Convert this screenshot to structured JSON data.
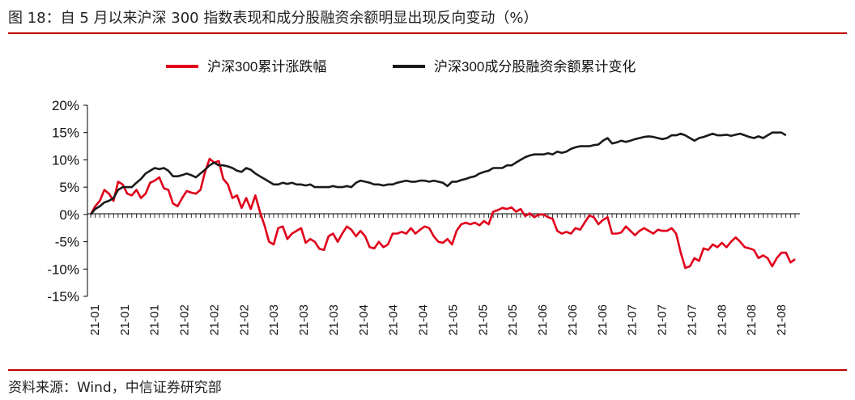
{
  "figure": {
    "title": "图 18：自 5 月以来沪深 300 指数表现和成分股融资余额明显出现反向变动（%）",
    "source": "资料来源：Wind，中信证券研究部"
  },
  "colors": {
    "series1": "#e0001b",
    "series2": "#1a1a1a",
    "rule": "#c00000"
  },
  "chart_data": {
    "type": "line",
    "title": "",
    "xlabel": "",
    "ylabel": "",
    "ylim": [
      -15,
      20
    ],
    "yticks": [
      -15,
      -10,
      -5,
      0,
      5,
      10,
      15,
      20
    ],
    "ytick_labels": [
      "-15%",
      "-10%",
      "-5%",
      "0%",
      "5%",
      "10%",
      "15%",
      "20%"
    ],
    "legend_position": "top",
    "x_tick_labels": [
      "21-01",
      "21-01",
      "21-01",
      "21-02",
      "21-02",
      "21-02",
      "21-03",
      "21-03",
      "21-03",
      "21-04",
      "21-04",
      "21-04",
      "21-05",
      "21-05",
      "21-05",
      "21-06",
      "21-06",
      "21-06",
      "21-07",
      "21-07",
      "21-07",
      "21-08",
      "21-08",
      "21-08"
    ],
    "series": [
      {
        "name": "沪深300累计涨跌幅",
        "color": "#e0001b",
        "values": [
          0.0,
          1.5,
          2.5,
          4.5,
          3.8,
          2.5,
          6.0,
          5.5,
          3.8,
          3.5,
          4.5,
          3.0,
          3.8,
          5.8,
          6.2,
          6.8,
          4.8,
          4.5,
          2.0,
          1.5,
          3.0,
          4.3,
          4.0,
          3.8,
          4.5,
          7.8,
          10.2,
          9.5,
          9.8,
          6.5,
          5.5,
          3.0,
          3.5,
          1.2,
          3.0,
          1.0,
          3.5,
          0.5,
          -2.0,
          -5.0,
          -5.5,
          -2.5,
          -2.2,
          -4.5,
          -3.5,
          -3.0,
          -2.5,
          -5.2,
          -4.5,
          -5.0,
          -6.3,
          -6.5,
          -4.0,
          -3.5,
          -5.0,
          -3.5,
          -2.2,
          -2.8,
          -4.0,
          -3.0,
          -4.0,
          -6.0,
          -6.2,
          -5.0,
          -6.0,
          -5.5,
          -3.5,
          -3.5,
          -3.2,
          -3.5,
          -2.5,
          -3.5,
          -2.8,
          -2.2,
          -2.5,
          -4.0,
          -5.0,
          -5.2,
          -4.5,
          -5.5,
          -3.0,
          -1.8,
          -1.5,
          -1.8,
          -1.5,
          -2.0,
          -1.2,
          -1.8,
          0.5,
          0.8,
          1.2,
          1.0,
          1.3,
          0.5,
          1.0,
          -0.3,
          0.2,
          -0.5,
          0.0,
          0.0,
          -0.5,
          -0.8,
          -3.0,
          -3.5,
          -3.2,
          -3.5,
          -2.5,
          -2.8,
          -1.5,
          -0.2,
          -0.5,
          -1.8,
          -1.0,
          -0.5,
          -3.5,
          -3.5,
          -3.3,
          -2.2,
          -3.0,
          -3.8,
          -3.0,
          -2.5,
          -3.0,
          -3.5,
          -2.8,
          -3.0,
          -3.0,
          -2.5,
          -3.5,
          -7.0,
          -9.8,
          -9.5,
          -8.0,
          -8.5,
          -6.2,
          -6.5,
          -5.5,
          -6.0,
          -5.2,
          -6.0,
          -5.0,
          -4.2,
          -5.0,
          -6.0,
          -6.2,
          -6.5,
          -8.0,
          -7.5,
          -8.0,
          -9.5,
          -8.0,
          -7.0,
          -7.0,
          -8.8,
          -8.2
        ]
      },
      {
        "name": "沪深300成分股融资余额累计变化",
        "color": "#1a1a1a",
        "values": [
          0.0,
          1.0,
          1.5,
          2.2,
          2.5,
          3.0,
          4.5,
          5.0,
          5.0,
          5.0,
          5.8,
          6.5,
          7.5,
          8.0,
          8.5,
          8.3,
          8.5,
          8.0,
          7.0,
          7.0,
          7.2,
          7.5,
          7.2,
          6.8,
          7.5,
          8.2,
          9.0,
          9.5,
          9.0,
          9.0,
          8.8,
          8.5,
          8.0,
          7.8,
          8.5,
          8.2,
          7.5,
          7.0,
          6.5,
          6.0,
          5.5,
          5.5,
          5.8,
          5.6,
          5.8,
          5.5,
          5.5,
          5.3,
          5.5,
          5.0,
          5.0,
          5.0,
          5.0,
          5.2,
          5.0,
          5.0,
          5.2,
          5.0,
          5.8,
          6.2,
          6.0,
          5.8,
          5.5,
          5.5,
          5.3,
          5.5,
          5.5,
          5.8,
          6.0,
          6.2,
          6.0,
          6.0,
          6.2,
          6.2,
          6.0,
          6.2,
          6.0,
          5.8,
          5.2,
          6.0,
          6.0,
          6.3,
          6.5,
          6.8,
          7.0,
          7.5,
          7.8,
          8.0,
          8.5,
          8.5,
          8.5,
          9.0,
          9.0,
          9.5,
          10.0,
          10.5,
          10.8,
          11.0,
          11.0,
          11.0,
          11.2,
          11.0,
          11.5,
          11.3,
          11.5,
          12.0,
          12.3,
          12.5,
          12.5,
          12.5,
          12.7,
          12.8,
          13.5,
          14.0,
          13.0,
          13.2,
          13.5,
          13.3,
          13.5,
          13.8,
          14.0,
          14.2,
          14.3,
          14.2,
          14.0,
          13.8,
          14.0,
          14.5,
          14.5,
          14.8,
          14.5,
          14.0,
          13.5,
          14.0,
          14.2,
          14.5,
          14.8,
          14.5,
          14.5,
          14.6,
          14.4,
          14.6,
          14.8,
          14.5,
          14.2,
          14.0,
          14.3,
          14.0,
          14.5,
          15.0,
          15.0,
          15.0,
          14.5
        ]
      }
    ]
  }
}
